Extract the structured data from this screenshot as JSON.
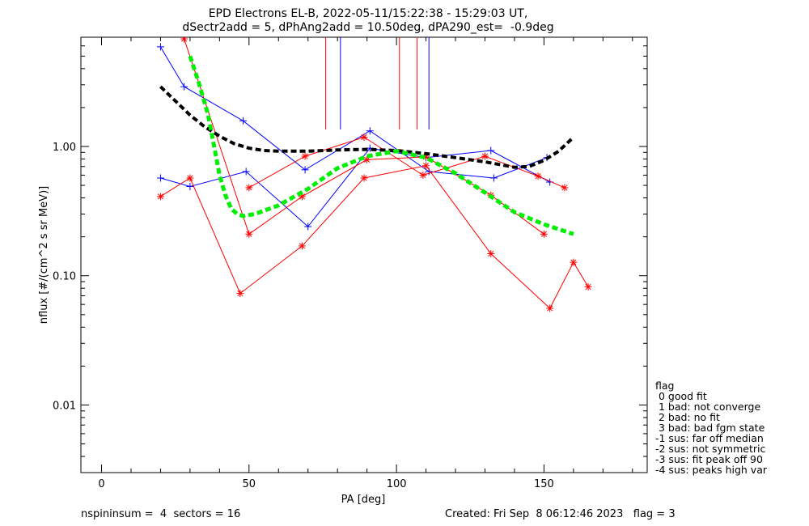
{
  "chart_data": {
    "type": "line",
    "title_line1": "EPD Electrons EL-B, 2022-05-11/15:22:38 - 15:29:03 UT,",
    "title_line2": "dSectr2add = 5, dPhAng2add = 10.50deg, dPA290_est=  -0.9deg",
    "xlabel": "PA [deg]",
    "ylabel": "nflux [#/(cm^2 s sr MeV)]",
    "xlim": [
      -7,
      185
    ],
    "ylim": [
      0.003,
      7
    ],
    "yscale": "log",
    "x_ticks": [
      {
        "value": 0,
        "label": "0"
      },
      {
        "value": 50,
        "label": "50"
      },
      {
        "value": 100,
        "label": "100"
      },
      {
        "value": 150,
        "label": "150"
      }
    ],
    "y_ticks": [
      {
        "value": 0.01,
        "label": "0.01"
      },
      {
        "value": 0.1,
        "label": "0.10"
      },
      {
        "value": 1.0,
        "label": "1.00"
      }
    ],
    "series": [
      {
        "color": "#0000ff",
        "marker": "plus",
        "x": [
          20,
          28,
          48,
          69,
          91,
          111,
          133,
          151
        ],
        "y": [
          5.9,
          2.9,
          1.58,
          0.66,
          1.32,
          0.64,
          0.57,
          0.82
        ]
      },
      {
        "color": "#0000ff",
        "marker": "plus",
        "x": [
          20,
          30,
          49,
          70,
          91,
          110,
          132,
          152
        ],
        "y": [
          0.57,
          0.49,
          0.64,
          0.24,
          0.97,
          0.82,
          0.93,
          0.53
        ]
      },
      {
        "color": "#ff0000",
        "marker": "asterisk",
        "x": [
          50,
          69,
          89,
          109,
          130,
          148,
          157
        ],
        "y": [
          0.48,
          0.84,
          1.18,
          0.6,
          0.84,
          0.59,
          0.48
        ]
      },
      {
        "color": "#ff0000",
        "marker": "asterisk",
        "x": [
          20,
          30,
          47,
          68,
          89,
          110,
          132,
          152,
          160,
          165
        ],
        "y": [
          0.41,
          0.57,
          0.073,
          0.17,
          0.57,
          0.71,
          0.148,
          0.056,
          0.127,
          0.082
        ]
      },
      {
        "color": "#ff0000",
        "marker": "asterisk",
        "x": [
          28,
          50,
          68,
          90,
          110,
          132,
          150
        ],
        "y": [
          6.8,
          0.21,
          0.41,
          0.79,
          0.83,
          0.42,
          0.21
        ]
      },
      {
        "color": "#000000",
        "dashed": true,
        "x": [
          20,
          25,
          30,
          35,
          40,
          45,
          50,
          55,
          60,
          70,
          80,
          90,
          100,
          110,
          120,
          130,
          140,
          145,
          150,
          155,
          160
        ],
        "y": [
          2.9,
          2.25,
          1.75,
          1.42,
          1.2,
          1.05,
          0.97,
          0.93,
          0.92,
          0.92,
          0.94,
          0.95,
          0.93,
          0.88,
          0.82,
          0.76,
          0.69,
          0.7,
          0.78,
          0.92,
          1.18
        ]
      },
      {
        "color": "#00ee00",
        "dashed": true,
        "thick": true,
        "x": [
          30,
          33,
          36,
          38,
          40,
          42,
          44,
          46,
          48,
          52,
          60,
          70,
          80,
          90,
          100,
          110,
          120,
          130,
          140,
          150,
          160
        ],
        "y": [
          5.0,
          3.1,
          1.8,
          1.05,
          0.6,
          0.42,
          0.33,
          0.3,
          0.29,
          0.3,
          0.35,
          0.47,
          0.68,
          0.84,
          0.92,
          0.82,
          0.62,
          0.44,
          0.31,
          0.25,
          0.21
        ]
      }
    ],
    "vlines": [
      {
        "x": 76,
        "color": "#ff0000"
      },
      {
        "x": 81,
        "color": "#0000ff"
      },
      {
        "x": 101,
        "color": "#ff0000"
      },
      {
        "x": 107,
        "color": "#ff0000"
      },
      {
        "x": 111,
        "color": "#0000ff"
      }
    ],
    "legend": {
      "title": "flag",
      "items": [
        " 0 good fit",
        " 1 bad: not converge",
        " 2 bad: no fit",
        " 3 bad: bad fgm state",
        "-1 sus: far off median",
        "-2 sus: not symmetric",
        "-3 sus: fit peak off 90",
        "-4 sus: peaks high var"
      ]
    },
    "footer": {
      "left": "nspininsum =  4  sectors = 16",
      "right": "Created: Fri Sep  8 06:12:46 2023   flag = 3"
    }
  }
}
